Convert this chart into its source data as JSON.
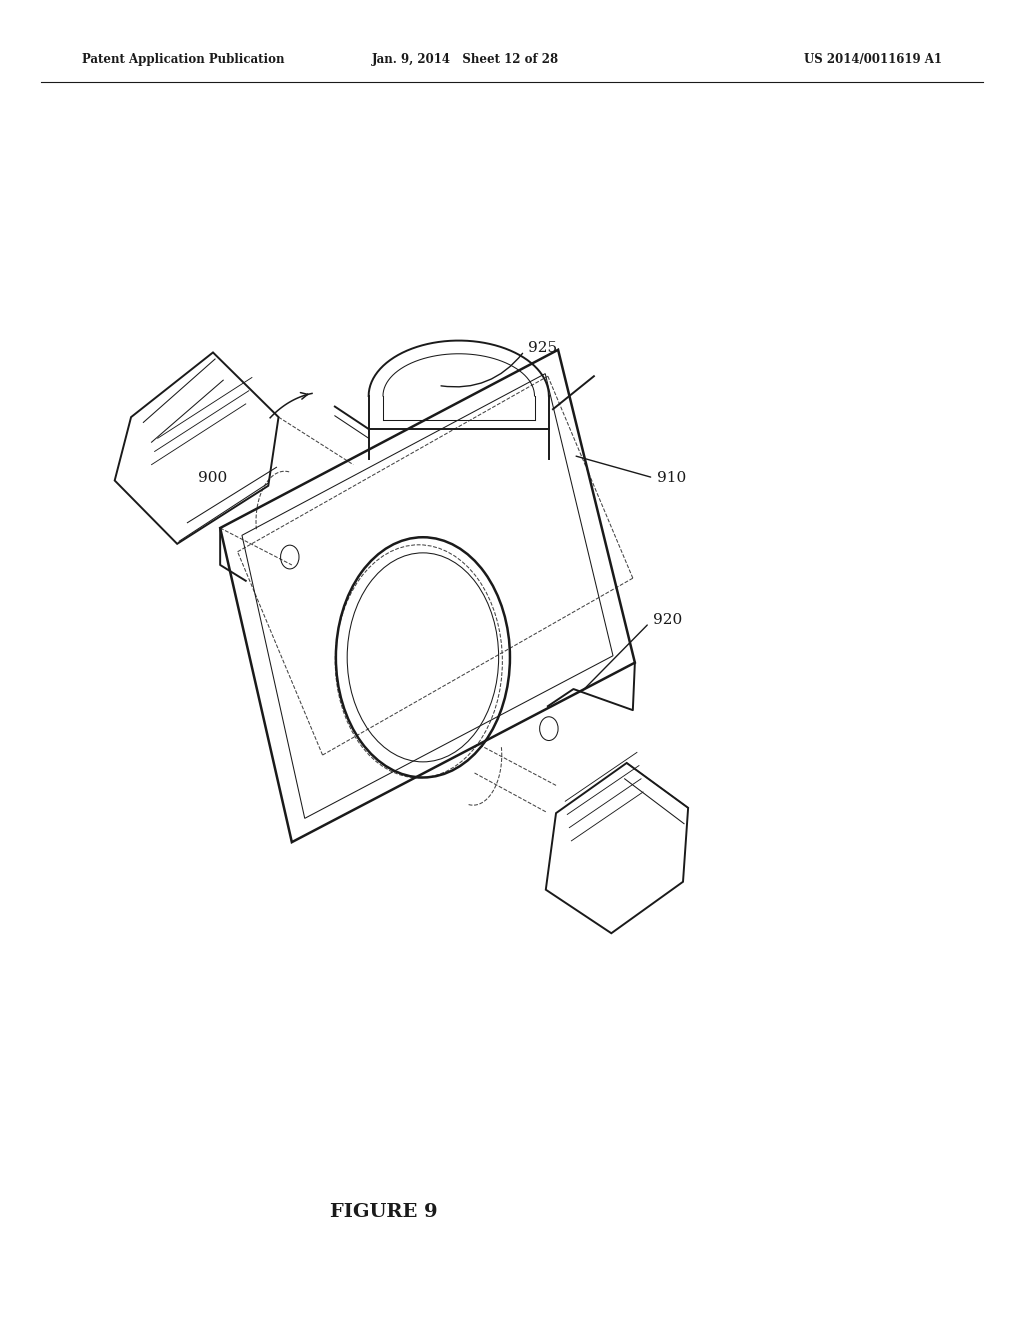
{
  "bg_color": "#ffffff",
  "header_left": "Patent Application Publication",
  "header_center": "Jan. 9, 2014   Sheet 12 of 28",
  "header_right": "US 2014/0011619 A1",
  "figure_caption": "FIGURE 9",
  "line_color": "#1a1a1a",
  "dashed_color": "#444444",
  "lw_main": 1.4,
  "lw_thin": 0.75,
  "lw_thick": 1.8
}
